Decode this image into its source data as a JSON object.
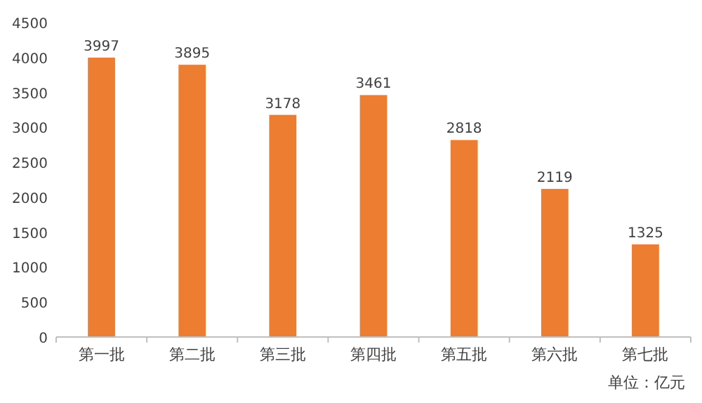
{
  "chart_data": {
    "type": "bar",
    "categories": [
      "第一批",
      "第二批",
      "第三批",
      "第四批",
      "第五批",
      "第六批",
      "第七批"
    ],
    "values": [
      3997,
      3895,
      3178,
      3461,
      2818,
      2119,
      1325
    ],
    "color": "#ed7d31",
    "ylim": [
      0,
      4500
    ],
    "yticks": [
      0,
      500,
      1000,
      1500,
      2000,
      2500,
      3000,
      3500,
      4000,
      4500
    ],
    "data_labels": true,
    "grid": false,
    "annotations": [
      "单位：亿元"
    ]
  }
}
